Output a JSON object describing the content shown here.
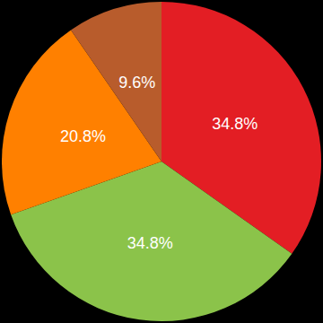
{
  "chart_data": {
    "type": "pie",
    "values": [
      34.8,
      34.8,
      20.8,
      9.6
    ],
    "value_labels": [
      "34.8%",
      "34.8%",
      "20.8%",
      "9.6%"
    ],
    "colors": [
      "#e31e24",
      "#8bc34a",
      "#ff8000",
      "#b85c2c"
    ],
    "data_labels": true
  }
}
